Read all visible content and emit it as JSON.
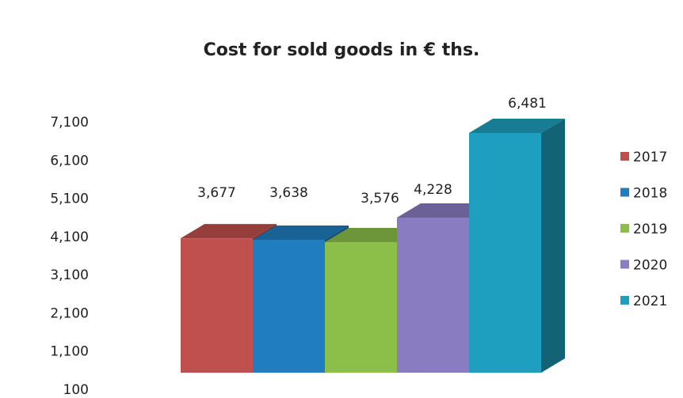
{
  "chart_data": {
    "type": "bar",
    "title": "Cost for sold goods in € ths.",
    "xlabel": "",
    "ylabel": "",
    "categories": [
      "2017",
      "2018",
      "2019",
      "2020",
      "2021"
    ],
    "values": [
      3677,
      3638,
      3576,
      4228,
      6481
    ],
    "data_labels": [
      "3,677",
      "3,638",
      "3,576",
      "4,228",
      "6,481"
    ],
    "colors": [
      "#c0504d",
      "#1f7dc0",
      "#8cbf4a",
      "#8a7cc0",
      "#1f9fbf"
    ],
    "ylim": [
      100,
      7100
    ],
    "yticks": [
      100,
      1100,
      2100,
      3100,
      4100,
      5100,
      6100,
      7100
    ],
    "ytick_labels": [
      "100",
      "1,100",
      "2,100",
      "3,100",
      "4,100",
      "5,100",
      "6,100",
      "7,100"
    ],
    "grid": false,
    "legend": {
      "position": "right",
      "entries": [
        "2017",
        "2018",
        "2019",
        "2020",
        "2021"
      ]
    },
    "style": "3d"
  }
}
